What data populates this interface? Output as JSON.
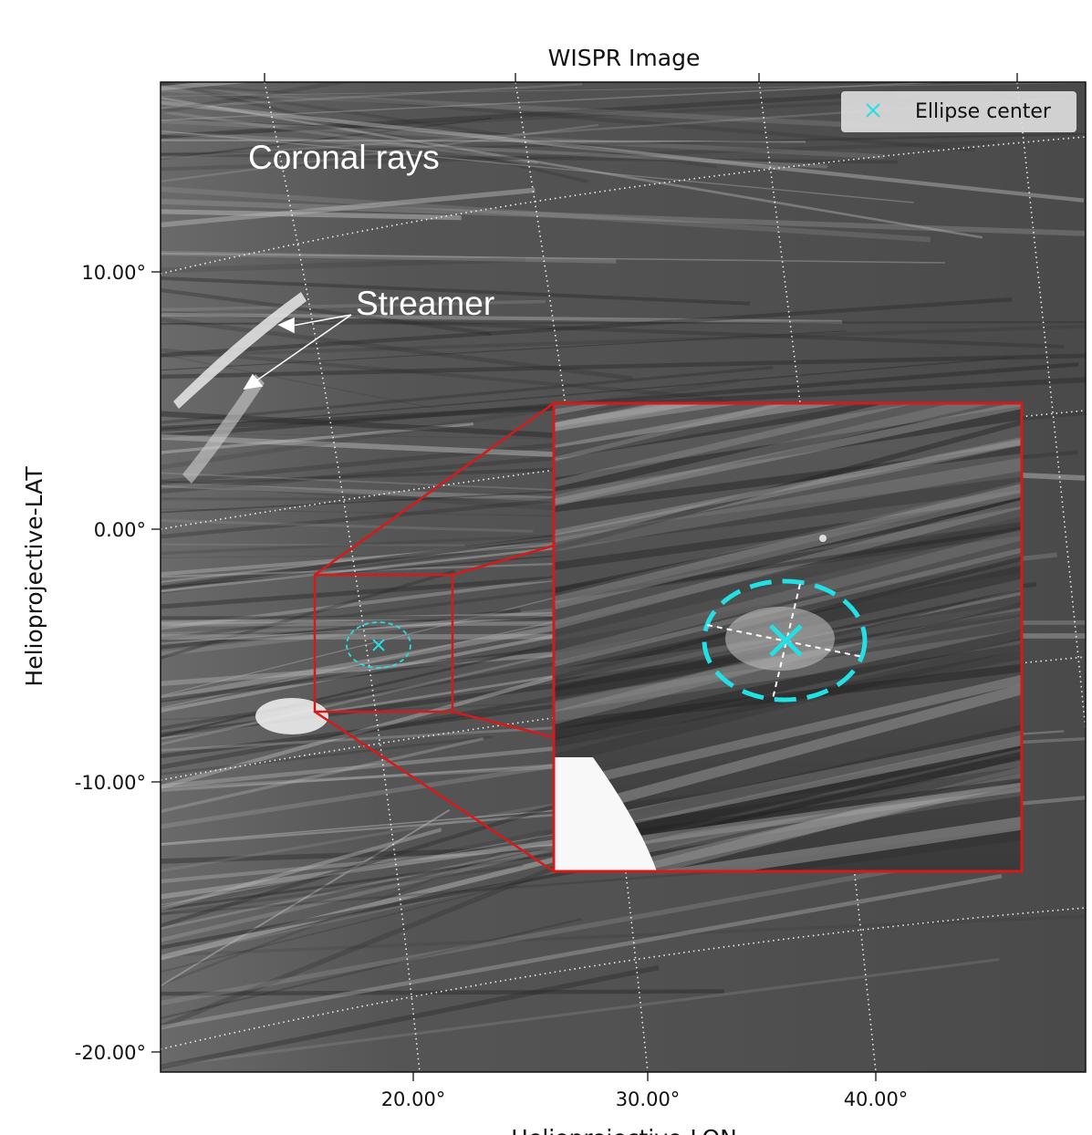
{
  "figure": {
    "title": "WISPR Image",
    "xlabel": "Helioprojective-LON",
    "ylabel": "Helioprojective-LAT",
    "xtick_labels": [
      "20.00°",
      "30.00°",
      "40.00°"
    ],
    "ytick_labels": [
      "10.00°",
      "0.00°",
      "-10.00°",
      "-20.00°"
    ],
    "annotations": [
      "Coronal rays",
      "Streamer"
    ],
    "legend": [
      "Ellipse center"
    ]
  }
}
